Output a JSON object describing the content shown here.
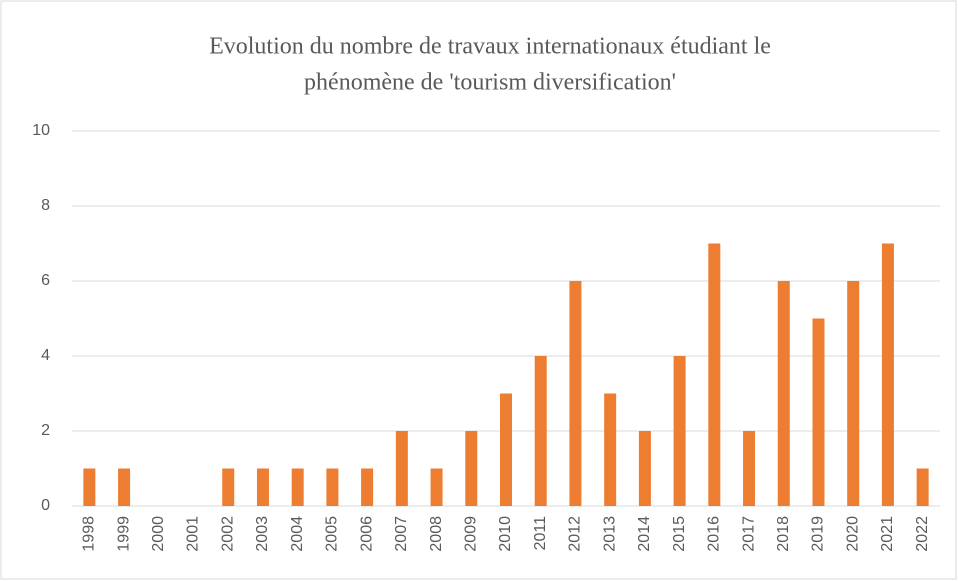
{
  "chart_data": {
    "type": "bar",
    "title": [
      "Evolution du nombre de travaux internationaux étudiant le",
      "phénomène de 'tourism diversification'"
    ],
    "categories": [
      "1998",
      "1999",
      "2000",
      "2001",
      "2002",
      "2003",
      "2004",
      "2005",
      "2006",
      "2007",
      "2008",
      "2009",
      "2010",
      "2011",
      "2012",
      "2013",
      "2014",
      "2015",
      "2016",
      "2017",
      "2018",
      "2019",
      "2020",
      "2021",
      "2022"
    ],
    "values": [
      1,
      1,
      0,
      0,
      1,
      1,
      1,
      1,
      1,
      2,
      1,
      2,
      3,
      4,
      6,
      3,
      2,
      4,
      7,
      2,
      6,
      5,
      6,
      7,
      1
    ],
    "color": "#ed7d31",
    "ylim": [
      0,
      10
    ],
    "yticks": [
      0,
      2,
      4,
      6,
      8,
      10
    ],
    "grid": true
  }
}
